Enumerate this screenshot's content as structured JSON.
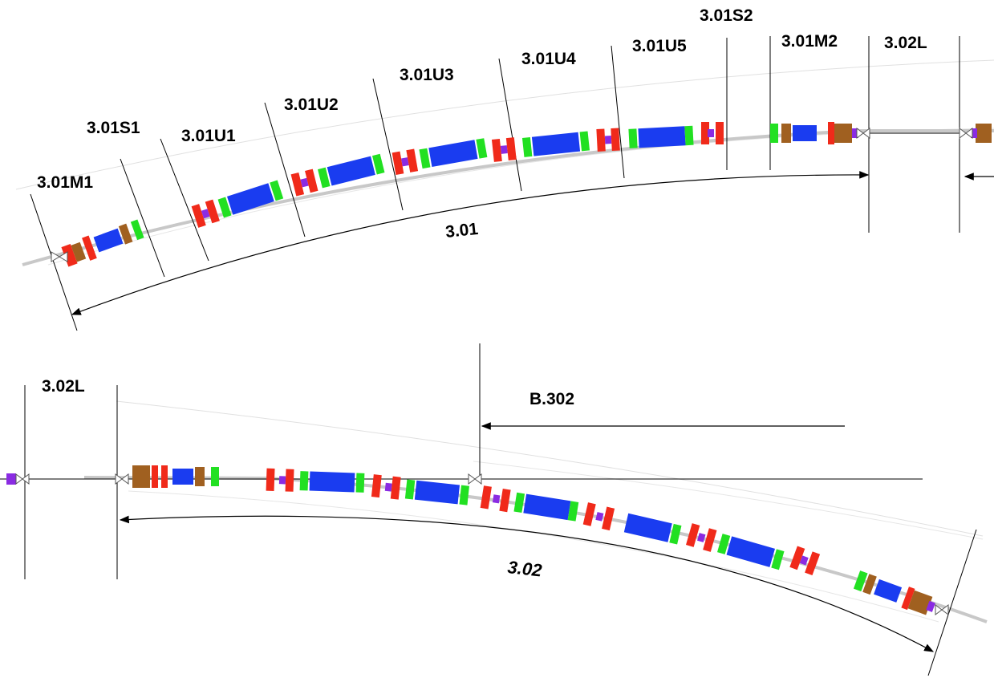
{
  "title": "",
  "colors": {
    "beampipe": "#c8c8c8",
    "dipole": "#1a3cf0",
    "quadrupole": "#f02a1a",
    "sextupole_corrector": "#22e022",
    "bpm_instrument": "#a06020",
    "diagnostic": "#8a2be2",
    "gate_valve": "#888888",
    "lines": "#000000"
  },
  "top_section": {
    "segment_labels": [
      "3.01M1",
      "3.01S1",
      "3.01U1",
      "3.01U2",
      "3.01U3",
      "3.01U4",
      "3.01U5",
      "3.01S2",
      "3.01M2",
      "3.02L"
    ],
    "arc_label": "3.01"
  },
  "bottom_section": {
    "segment_labels": [
      "3.02L"
    ],
    "straight_label": "B.302",
    "arc_label": "3.02"
  }
}
